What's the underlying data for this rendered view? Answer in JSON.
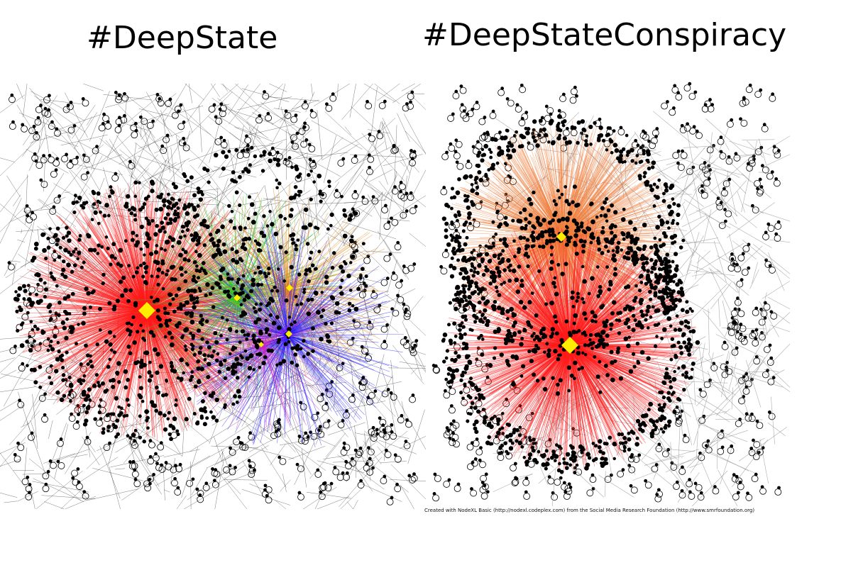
{
  "titles": {
    "left": "#DeepState",
    "right": "#DeepStateConspiracy"
  },
  "credit": "Created with NodeXL Basic (http://nodexl.codeplex.com) from the Social Media Research Foundation (http://www.smrfoundation.org)",
  "graphs": {
    "left": {
      "clusters": [
        {
          "name": "red",
          "color": "#ff1a1a"
        },
        {
          "name": "green",
          "color": "#22cc22"
        },
        {
          "name": "orange",
          "color": "#e08a1e"
        },
        {
          "name": "blue",
          "color": "#1a1aff"
        },
        {
          "name": "magenta",
          "color": "#cc22cc"
        }
      ],
      "hub_color": "#ffee00",
      "node_color": "#000000"
    },
    "right": {
      "clusters": [
        {
          "name": "orange",
          "color": "#f08040"
        },
        {
          "name": "red",
          "color": "#ff1a1a"
        },
        {
          "name": "gray",
          "color": "#8a8a8a"
        }
      ],
      "hub_color": "#ffee00",
      "node_color": "#000000"
    }
  }
}
